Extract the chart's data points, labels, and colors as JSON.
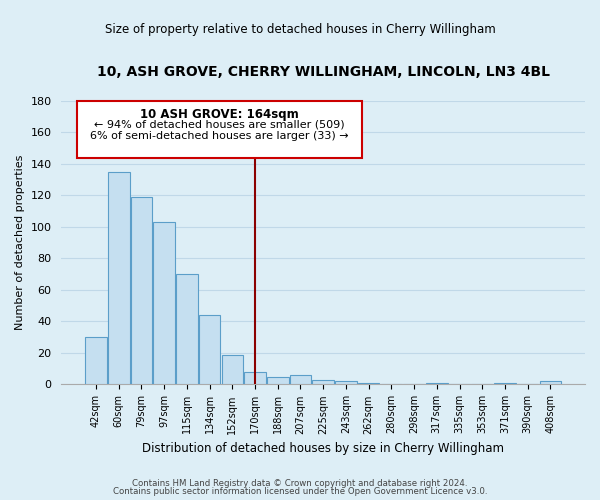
{
  "title": "10, ASH GROVE, CHERRY WILLINGHAM, LINCOLN, LN3 4BL",
  "subtitle": "Size of property relative to detached houses in Cherry Willingham",
  "xlabel": "Distribution of detached houses by size in Cherry Willingham",
  "ylabel": "Number of detached properties",
  "bar_labels": [
    "42sqm",
    "60sqm",
    "79sqm",
    "97sqm",
    "115sqm",
    "134sqm",
    "152sqm",
    "170sqm",
    "188sqm",
    "207sqm",
    "225sqm",
    "243sqm",
    "262sqm",
    "280sqm",
    "298sqm",
    "317sqm",
    "335sqm",
    "353sqm",
    "371sqm",
    "390sqm",
    "408sqm"
  ],
  "bar_values": [
    30,
    135,
    119,
    103,
    70,
    44,
    19,
    8,
    5,
    6,
    3,
    2,
    1,
    0,
    0,
    1,
    0,
    0,
    1,
    0,
    2
  ],
  "bar_color": "#c5dff0",
  "bar_edge_color": "#5b9ec9",
  "vline_x": 7,
  "vline_color": "#8b0000",
  "ylim": [
    0,
    180
  ],
  "yticks": [
    0,
    20,
    40,
    60,
    80,
    100,
    120,
    140,
    160,
    180
  ],
  "annotation_title": "10 ASH GROVE: 164sqm",
  "annotation_line1": "← 94% of detached houses are smaller (509)",
  "annotation_line2": "6% of semi-detached houses are larger (33) →",
  "annotation_box_color": "#ffffff",
  "annotation_box_edge": "#cc0000",
  "footer_line1": "Contains HM Land Registry data © Crown copyright and database right 2024.",
  "footer_line2": "Contains public sector information licensed under the Open Government Licence v3.0.",
  "bg_color": "#ddeef6",
  "plot_bg_color": "#ddeef6",
  "grid_color": "#c0d8e8"
}
